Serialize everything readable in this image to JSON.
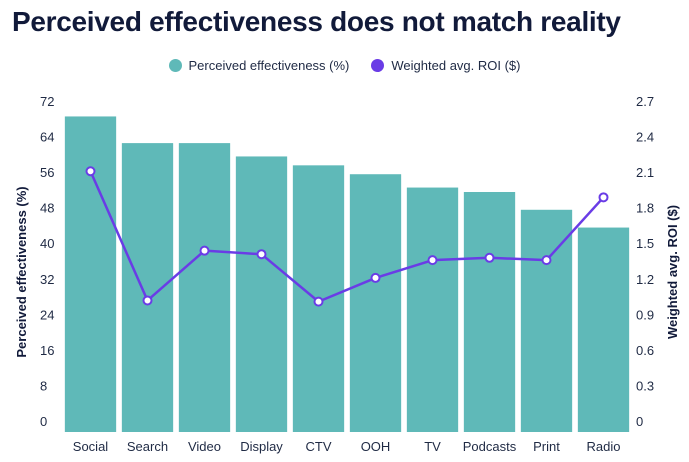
{
  "colors": {
    "bar": "#5fb9b8",
    "line": "#6a3ce6",
    "title": "#111a3a",
    "text": "#1f2a44"
  },
  "chart_data": {
    "type": "bar",
    "title": "Perceived effectiveness does not match reality",
    "categories": [
      "Social",
      "Search",
      "Video",
      "Display",
      "CTV",
      "OOH",
      "TV",
      "Podcasts",
      "Print",
      "Radio"
    ],
    "series": [
      {
        "name": "Perceived effectiveness (%)",
        "type": "bar",
        "axis": "left",
        "values": [
          71,
          65,
          65,
          62,
          60,
          58,
          55,
          54,
          50,
          46
        ]
      },
      {
        "name": "Weighted avg. ROI ($)",
        "type": "line",
        "axis": "right",
        "values": [
          2.2,
          1.11,
          1.53,
          1.5,
          1.1,
          1.3,
          1.45,
          1.47,
          1.45,
          1.98
        ]
      }
    ],
    "ylabel": "Perceived effectiveness (%)",
    "y2label": "Weighted avg. ROI ($)",
    "ylim": [
      0,
      72
    ],
    "y2lim": [
      0,
      2.7
    ],
    "yticks": [
      0,
      8,
      16,
      24,
      32,
      40,
      48,
      56,
      64,
      72
    ],
    "y2ticks": [
      "0",
      "0.3",
      "0.6",
      "0.9",
      "1.2",
      "1.5",
      "1.8",
      "2.1",
      "2.4",
      "2.7"
    ],
    "grid": false,
    "legend_position": "top-center"
  }
}
